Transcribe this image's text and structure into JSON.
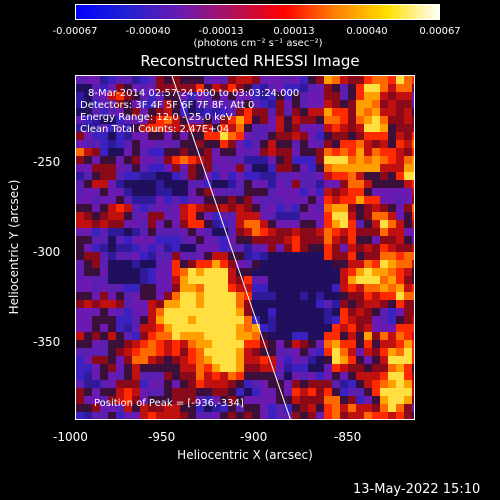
{
  "colorbar": {
    "ticks": [
      "-0.00067",
      "-0.00040",
      "-0.00013",
      "0.00013",
      "0.00040",
      "0.00067"
    ],
    "unit_label": "(photons cm⁻² s⁻¹ asec⁻²)",
    "colors": [
      "#0000ff",
      "#2222d0",
      "#6a1ab0",
      "#b0105a",
      "#ff0000",
      "#ff8000",
      "#ffe000",
      "#ffffff"
    ]
  },
  "plot": {
    "title": "Reconstructed RHESSI Image",
    "annotations": {
      "time_range": "8-Mar-2014 02:57:24.000 to 03:03:24.000",
      "detectors": "Detectors: 3F 4F 5F 6F 7F 8F, Att 0",
      "energy": "Energy Range: 12.0 - 25.0 keV",
      "method": "Clean      Total Counts: 2.47E+04",
      "peak": "Position of Peak = [-936,-334]"
    },
    "x_axis": {
      "title": "Heliocentric X (arcsec)",
      "ticks": [
        "-1000",
        "-950",
        "-900",
        "-850"
      ],
      "range": [
        -1000,
        -815
      ]
    },
    "y_axis": {
      "title": "Heliocentric Y (arcsec)",
      "ticks": [
        "-250",
        "-300",
        "-350"
      ],
      "range": [
        -395,
        -215
      ]
    }
  },
  "footer": {
    "date_stamp": "13-May-2022 15:10"
  }
}
